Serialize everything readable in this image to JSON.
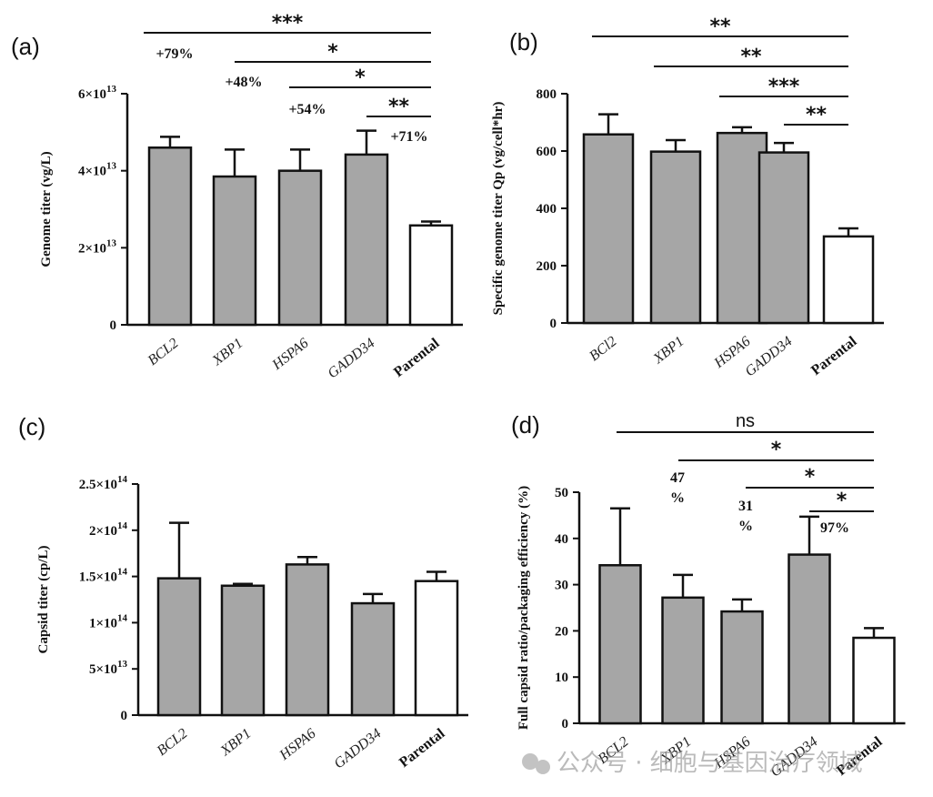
{
  "chart_data": [
    {
      "panel": "(a)",
      "type": "bar",
      "ylabel": "Genome titer (vg/L)",
      "ylim": [
        0,
        60000000000000.0
      ],
      "yticks": [
        0,
        20000000000000.0,
        40000000000000.0,
        60000000000000.0
      ],
      "ytick_labels": [
        "0",
        "2×10",
        "4×10",
        "6×10"
      ],
      "ytick_exponents": [
        "",
        "13",
        "13",
        "13"
      ],
      "categories": [
        "BCL2",
        "XBP1",
        "HSPA6",
        "GADD34",
        "Parental"
      ],
      "values": [
        46000000000000.0,
        38500000000000.0,
        40000000000000.0,
        44200000000000.0,
        25800000000000.0
      ],
      "errors": [
        2800000000000.0,
        7000000000000.0,
        5500000000000.0,
        6200000000000.0,
        1000000000000.0
      ],
      "bar_colors": [
        "#a6a6a6",
        "#a6a6a6",
        "#a6a6a6",
        "#a6a6a6",
        "#ffffff"
      ],
      "significance": [
        {
          "from": 0,
          "to": 4,
          "label": "***"
        },
        {
          "from": 1,
          "to": 4,
          "label": "*"
        },
        {
          "from": 2,
          "to": 4,
          "label": "*"
        },
        {
          "from": 3,
          "to": 4,
          "label": "**"
        }
      ],
      "annotations": [
        "+79%",
        "+48%",
        "+54%",
        "+71%"
      ]
    },
    {
      "panel": "(b)",
      "type": "bar",
      "ylabel": "Specific genome titer Qp (vg/cell*hr)",
      "ylim": [
        0,
        800
      ],
      "yticks": [
        0,
        200,
        400,
        600,
        800
      ],
      "ytick_labels": [
        "0",
        "200",
        "400",
        "600",
        "800"
      ],
      "categories": [
        "BCl2",
        "XBP1",
        "HSPA6",
        "GADD34",
        "Parental"
      ],
      "values": [
        658,
        598,
        663,
        595,
        302
      ],
      "errors": [
        70,
        40,
        20,
        33,
        28
      ],
      "bar_colors": [
        "#a6a6a6",
        "#a6a6a6",
        "#a6a6a6",
        "#a6a6a6",
        "#ffffff"
      ],
      "significance": [
        {
          "from": 0,
          "to": 4,
          "label": "**"
        },
        {
          "from": 1,
          "to": 4,
          "label": "**"
        },
        {
          "from": 2,
          "to": 4,
          "label": "***"
        },
        {
          "from": 3,
          "to": 4,
          "label": "**"
        }
      ]
    },
    {
      "panel": "(c)",
      "type": "bar",
      "ylabel": "Capsid titer (cp/L)",
      "ylim": [
        0,
        250000000000000.0
      ],
      "yticks": [
        0,
        50000000000000.0,
        100000000000000.0,
        150000000000000.0,
        200000000000000.0,
        250000000000000.0
      ],
      "ytick_labels": [
        "0",
        "5×10",
        "1×10",
        "1.5×10",
        "2×10",
        "2.5×10"
      ],
      "ytick_exponents": [
        "",
        "13",
        "14",
        "14",
        "14",
        "14"
      ],
      "categories": [
        "BCL2",
        "XBP1",
        "HSPA6",
        "GADD34",
        "Parental"
      ],
      "values": [
        148000000000000.0,
        140000000000000.0,
        163000000000000.0,
        121000000000000.0,
        145000000000000.0
      ],
      "errors": [
        60000000000000.0,
        2000000000000.0,
        8000000000000.0,
        10000000000000.0,
        10000000000000.0
      ],
      "bar_colors": [
        "#a6a6a6",
        "#a6a6a6",
        "#a6a6a6",
        "#a6a6a6",
        "#ffffff"
      ]
    },
    {
      "panel": "(d)",
      "type": "bar",
      "ylabel": "Full capsid ratio/packaging efficiency (%)",
      "ylim": [
        0,
        50
      ],
      "yticks": [
        0,
        10,
        20,
        30,
        40,
        50
      ],
      "ytick_labels": [
        "0",
        "10",
        "20",
        "30",
        "40",
        "50"
      ],
      "categories": [
        "BCL2",
        "XBP1",
        "HSPA6",
        "GADD34",
        "Parental"
      ],
      "values": [
        34.2,
        27.2,
        24.2,
        36.5,
        18.5
      ],
      "errors": [
        12.3,
        4.9,
        2.6,
        8.2,
        2.1
      ],
      "bar_colors": [
        "#a6a6a6",
        "#a6a6a6",
        "#a6a6a6",
        "#a6a6a6",
        "#ffffff"
      ],
      "significance": [
        {
          "from": 0,
          "to": 4,
          "label": "ns"
        },
        {
          "from": 1,
          "to": 4,
          "label": "*"
        },
        {
          "from": 2,
          "to": 4,
          "label": "*"
        },
        {
          "from": 3,
          "to": 4,
          "label": "*"
        }
      ],
      "annotations": [
        "47",
        "%",
        "31",
        "%",
        "97%"
      ]
    }
  ],
  "watermark": "公众号 · 细胞与基因治疗领域"
}
